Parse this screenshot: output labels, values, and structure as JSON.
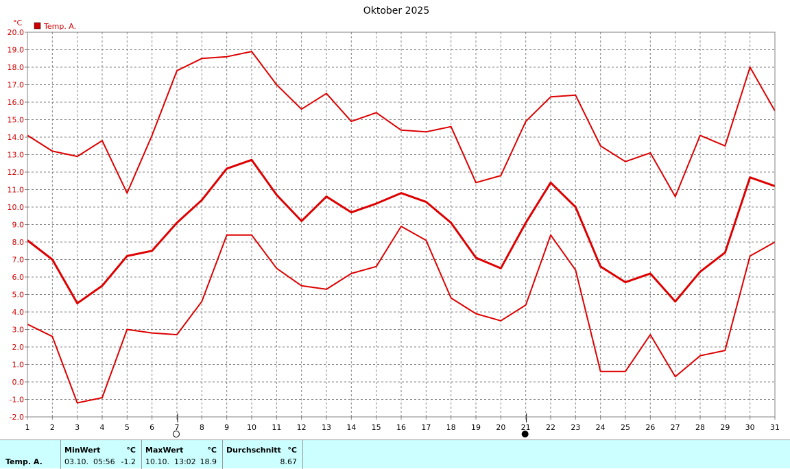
{
  "chart_data": {
    "type": "line",
    "title": "Oktober 2025",
    "ylabel": "°C",
    "ylim": [
      -2,
      20
    ],
    "ystep": 1,
    "x": [
      1,
      2,
      3,
      4,
      5,
      6,
      7,
      8,
      9,
      10,
      11,
      12,
      13,
      14,
      15,
      16,
      17,
      18,
      19,
      20,
      21,
      22,
      23,
      24,
      25,
      26,
      27,
      28,
      29,
      30,
      31
    ],
    "legend": [
      {
        "label": "Temp. A.",
        "color": "#cc0000"
      }
    ],
    "legend_position": "top-left",
    "grid": true,
    "series": [
      {
        "role": "max",
        "color": "#dd0000",
        "values": [
          14.1,
          13.2,
          12.9,
          13.8,
          10.8,
          14.1,
          17.8,
          18.5,
          18.6,
          18.9,
          17.0,
          15.6,
          16.5,
          14.9,
          15.4,
          14.4,
          14.3,
          14.6,
          11.4,
          11.8,
          14.9,
          16.3,
          16.4,
          13.5,
          12.6,
          13.1,
          10.6,
          14.1,
          13.5,
          18.0,
          15.5
        ]
      },
      {
        "role": "avg",
        "color": "#dd0000",
        "values": [
          8.1,
          7.0,
          4.5,
          5.5,
          7.2,
          7.5,
          9.1,
          10.4,
          12.2,
          12.7,
          10.7,
          9.2,
          10.6,
          9.7,
          10.2,
          10.8,
          10.3,
          9.1,
          7.1,
          6.5,
          9.1,
          11.4,
          10.0,
          6.6,
          5.7,
          6.2,
          4.6,
          6.3,
          7.4,
          11.7,
          11.2
        ]
      },
      {
        "role": "min",
        "color": "#dd0000",
        "values": [
          3.3,
          2.6,
          -1.2,
          -0.9,
          3.0,
          2.8,
          2.7,
          4.6,
          8.4,
          8.4,
          6.5,
          5.5,
          5.3,
          6.2,
          6.6,
          8.9,
          8.1,
          4.8,
          3.9,
          3.5,
          4.4,
          8.4,
          6.4,
          0.6,
          0.6,
          2.7,
          0.3,
          1.5,
          1.8,
          7.2,
          8.0
        ]
      }
    ],
    "moon_phases": [
      {
        "day": 7,
        "phase": "full"
      },
      {
        "day": 21,
        "phase": "new"
      }
    ]
  },
  "stats": {
    "row_label": "Temp. A.",
    "min": {
      "header": "MinWert",
      "unit": "°C",
      "datetime": "03.10.  05:56",
      "value": "-1.2"
    },
    "max": {
      "header": "MaxWert",
      "unit": "°C",
      "datetime": "10.10.  13:02",
      "value": "18.9"
    },
    "avg": {
      "header": "Durchschnitt",
      "unit": "°C",
      "value": "8.67"
    }
  }
}
